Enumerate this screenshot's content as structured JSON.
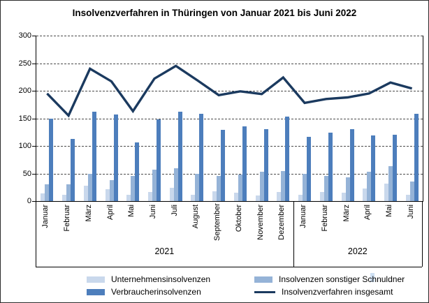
{
  "chart_data": {
    "type": "bar+line",
    "title": "Insolvenzverfahren in Thüringen von Januar 2021 bis Juni 2022",
    "y_axis": {
      "min": 0,
      "max": 300,
      "step": 50,
      "ticks": [
        "300",
        "250",
        "200",
        "150",
        "100",
        "50",
        "0"
      ]
    },
    "grid": "horizontal-dashed",
    "legend_position": "bottom",
    "series": [
      {
        "key": "unternehmen",
        "name": "Unternehmensinsolvenzen",
        "type": "bar",
        "color": "#c9d8ec"
      },
      {
        "key": "sonstige",
        "name": "Insolvenzen sonstiger Schnuldner",
        "type": "bar",
        "color": "#95b3d7"
      },
      {
        "key": "verbraucher",
        "name": "Verbraucherinsolvenzen",
        "type": "bar",
        "color": "#4d7ebc"
      },
      {
        "key": "insgesamt",
        "name": "Insolvenzverfahren insgesamt",
        "type": "line",
        "color": "#1b3a5f"
      }
    ],
    "sections": [
      {
        "year": "2021",
        "months": [
          {
            "label": "Januar",
            "unternehmen": 14,
            "sonstige": 30,
            "verbraucher": 150,
            "insgesamt": 195
          },
          {
            "label": "Februar",
            "unternehmen": 12,
            "sonstige": 30,
            "verbraucher": 113,
            "insgesamt": 155
          },
          {
            "label": "März",
            "unternehmen": 28,
            "sonstige": 50,
            "verbraucher": 162,
            "insgesamt": 240
          },
          {
            "label": "April",
            "unternehmen": 22,
            "sonstige": 38,
            "verbraucher": 157,
            "insgesamt": 217
          },
          {
            "label": "Mai",
            "unternehmen": 12,
            "sonstige": 45,
            "verbraucher": 106,
            "insgesamt": 163
          },
          {
            "label": "Juni",
            "unternehmen": 17,
            "sonstige": 57,
            "verbraucher": 148,
            "insgesamt": 222
          },
          {
            "label": "Juli",
            "unternehmen": 24,
            "sonstige": 59,
            "verbraucher": 162,
            "insgesamt": 245
          },
          {
            "label": "August",
            "unternehmen": 12,
            "sonstige": 49,
            "verbraucher": 158,
            "insgesamt": 219
          },
          {
            "label": "September",
            "unternehmen": 18,
            "sonstige": 45,
            "verbraucher": 129,
            "insgesamt": 192
          },
          {
            "label": "Oktober",
            "unternehmen": 15,
            "sonstige": 48,
            "verbraucher": 136,
            "insgesamt": 199
          },
          {
            "label": "November",
            "unternehmen": 10,
            "sonstige": 53,
            "verbraucher": 131,
            "insgesamt": 194
          },
          {
            "label": "Dezember",
            "unternehmen": 17,
            "sonstige": 54,
            "verbraucher": 153,
            "insgesamt": 224
          }
        ]
      },
      {
        "year": "2022",
        "months": [
          {
            "label": "Januar",
            "unternehmen": 12,
            "sonstige": 50,
            "verbraucher": 116,
            "insgesamt": 178
          },
          {
            "label": "Februar",
            "unternehmen": 16,
            "sonstige": 45,
            "verbraucher": 124,
            "insgesamt": 185
          },
          {
            "label": "März",
            "unternehmen": 15,
            "sonstige": 43,
            "verbraucher": 130,
            "insgesamt": 188
          },
          {
            "label": "April",
            "unternehmen": 23,
            "sonstige": 53,
            "verbraucher": 119,
            "insgesamt": 195
          },
          {
            "label": "Mai",
            "unternehmen": 32,
            "sonstige": 63,
            "verbraucher": 120,
            "insgesamt": 215
          },
          {
            "label": "Juni",
            "unternehmen": 11,
            "sonstige": 35,
            "verbraucher": 158,
            "insgesamt": 204
          }
        ]
      }
    ]
  },
  "legend": {
    "items": [
      {
        "label": "Unternehmensinsolvenzen",
        "series": "unternehmen",
        "swatch": "bar"
      },
      {
        "label": "Verbraucherinsolvenzen",
        "series": "verbraucher",
        "swatch": "bar"
      },
      {
        "label": "Insolvenzen sonstiger Schnuldner",
        "series": "sonstige",
        "swatch": "bar"
      },
      {
        "label": "Insolvenzverfahren insgesamt",
        "series": "insgesamt",
        "swatch": "line"
      }
    ]
  }
}
